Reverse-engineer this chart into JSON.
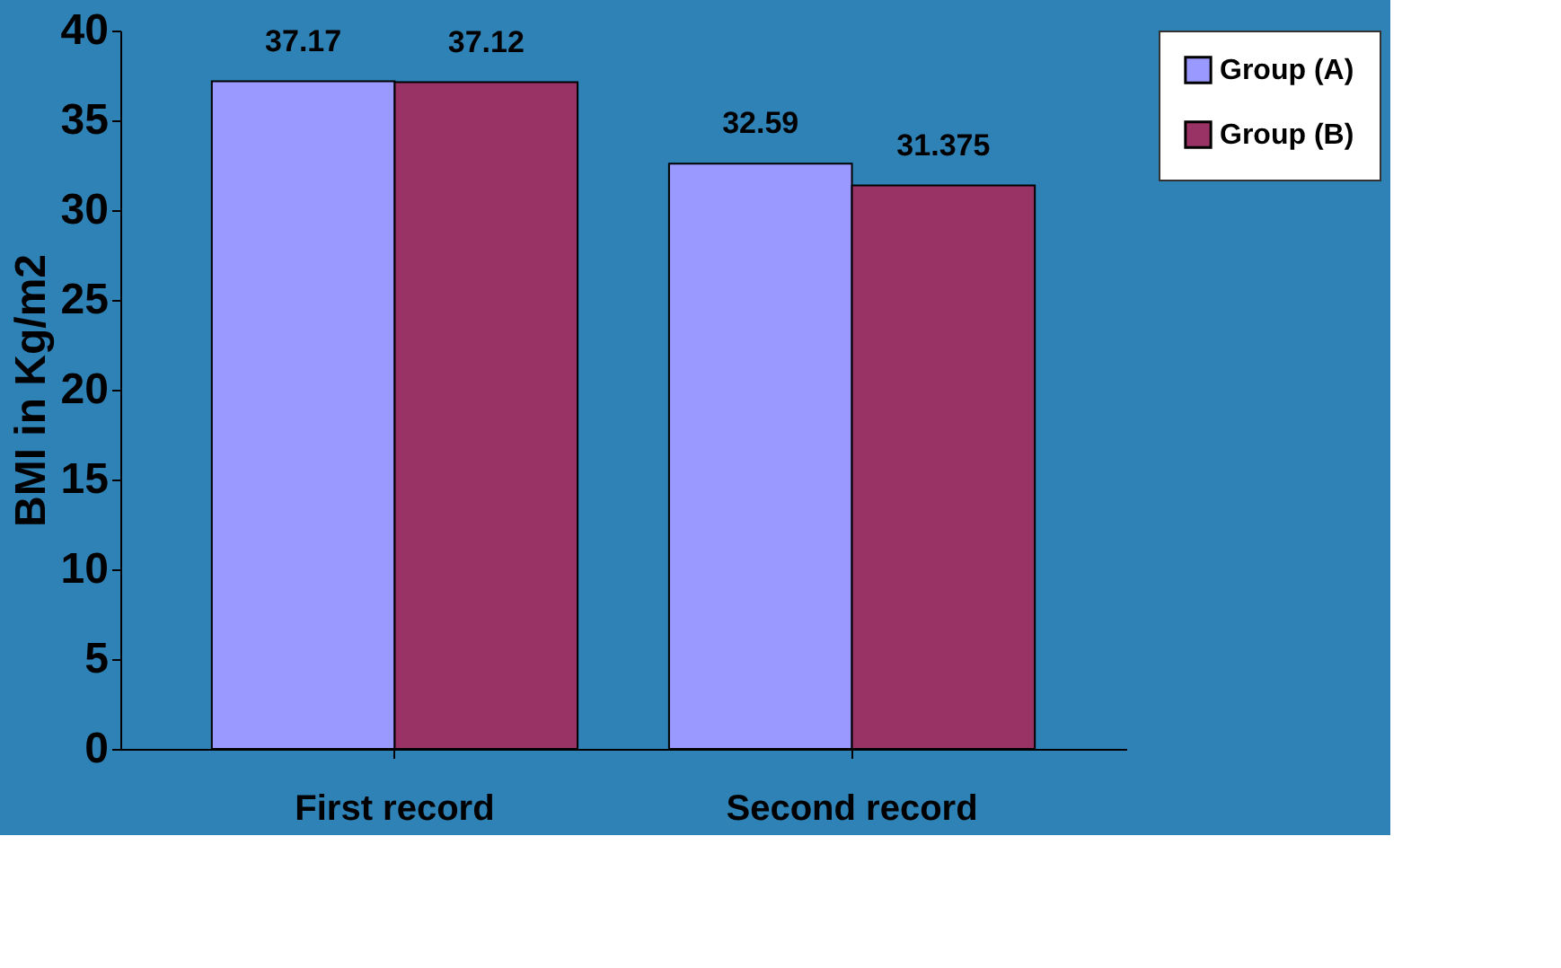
{
  "chart_data": {
    "type": "bar",
    "ylabel": "BMI in Kg/m2",
    "categories": [
      "First record",
      "Second record"
    ],
    "series": [
      {
        "name": "Group (A)",
        "color": "#9999ff",
        "values": [
          37.17,
          32.59
        ]
      },
      {
        "name": "Group (B)",
        "color": "#993366",
        "values": [
          37.12,
          31.375
        ]
      }
    ],
    "ylim": [
      0,
      40
    ],
    "yticks": [
      0,
      5,
      10,
      15,
      20,
      25,
      30,
      35,
      40
    ],
    "data_labels": true,
    "legend": "top right",
    "grid": false
  }
}
